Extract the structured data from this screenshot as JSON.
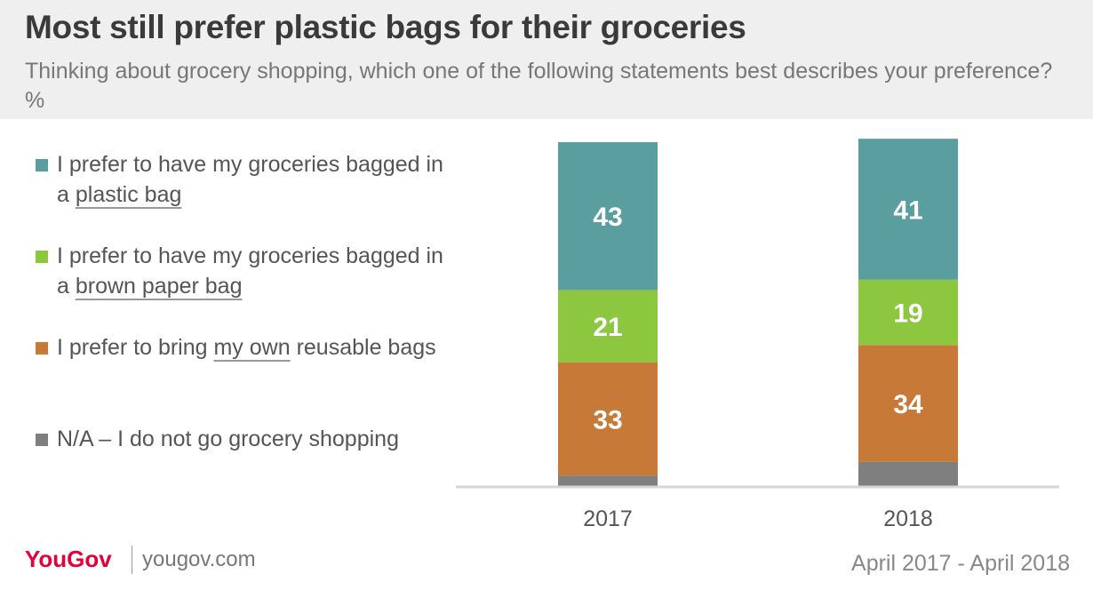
{
  "header": {
    "title": "Most still prefer plastic bags for their groceries",
    "subtitle": "Thinking about grocery shopping, which one of the following statements best describes your preference? %"
  },
  "legend": [
    {
      "pre": "I prefer to have my groceries bagged in a ",
      "underline": "plastic bag",
      "post": "",
      "color": "#5b9ea0"
    },
    {
      "pre": "I prefer to have my groceries bagged in a ",
      "underline": "brown paper bag",
      "post": "",
      "color": "#8dc63f"
    },
    {
      "pre": "I prefer to bring ",
      "underline": "my own",
      "post": " reusable bags",
      "color": "#c77a38"
    },
    {
      "pre": "N/A – I do not go grocery shopping",
      "underline": "",
      "post": "",
      "color": "#7f7f7f"
    }
  ],
  "chart_data": {
    "type": "bar",
    "stacked": true,
    "categories": [
      "2017",
      "2018"
    ],
    "series": [
      {
        "name": "I prefer to have my groceries bagged in a plastic bag",
        "values": [
          43,
          41
        ],
        "color": "#5b9ea0"
      },
      {
        "name": "I prefer to have my groceries bagged in a brown paper bag",
        "values": [
          21,
          19
        ],
        "color": "#8dc63f"
      },
      {
        "name": "I prefer to bring my own reusable bags",
        "values": [
          33,
          34
        ],
        "color": "#c77a38"
      },
      {
        "name": "N/A – I do not go grocery shopping",
        "values": [
          3,
          7
        ],
        "color": "#7f7f7f"
      }
    ],
    "labels_shown": [
      [
        43,
        41
      ],
      [
        21,
        19
      ],
      [
        33,
        34
      ],
      [
        null,
        null
      ]
    ],
    "ylim": [
      0,
      100
    ],
    "legend_position": "left",
    "grid": false
  },
  "footer": {
    "brand": "YouGov",
    "url": "yougov.com",
    "date": "April 2017 -  April 2018"
  }
}
